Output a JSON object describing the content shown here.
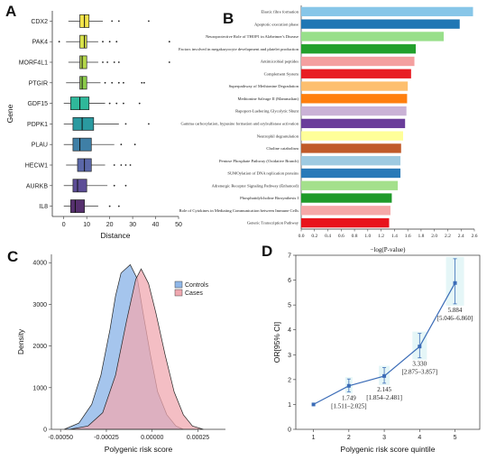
{
  "panels": [
    {
      "letter": "A"
    },
    {
      "letter": "B"
    },
    {
      "letter": "C"
    },
    {
      "letter": "D"
    }
  ],
  "chart_data": [
    {
      "type": "boxplot",
      "panel": "A",
      "xlabel": "Distance",
      "ylabel": "Gene",
      "xlim": [
        -5,
        50
      ],
      "xticks": [
        0,
        10,
        20,
        30,
        40,
        50
      ],
      "boxes": [
        {
          "label": "CDX2",
          "color": "#f2e34a",
          "q1": 7,
          "median": 9,
          "q3": 11,
          "whisker_low": 2,
          "whisker_high": 17,
          "outliers": [
            21,
            24,
            37
          ]
        },
        {
          "label": "PAK4",
          "color": "#d8e24a",
          "q1": 7,
          "median": 9,
          "q3": 10,
          "whisker_low": 1,
          "whisker_high": 15,
          "outliers": [
            -2,
            17,
            20,
            23,
            46
          ]
        },
        {
          "label": "MORF4L1",
          "color": "#b5d84a",
          "q1": 7,
          "median": 8,
          "q3": 10,
          "whisker_low": 2,
          "whisker_high": 15,
          "outliers": [
            17,
            19,
            22,
            24,
            46
          ]
        },
        {
          "label": "PTGIR",
          "color": "#8ccd4a",
          "q1": 7,
          "median": 8,
          "q3": 10,
          "whisker_low": 1,
          "whisker_high": 16,
          "outliers": [
            18,
            21,
            24,
            26,
            34,
            35
          ]
        },
        {
          "label": "GDF15",
          "color": "#2fb89a",
          "q1": 3,
          "median": 7,
          "q3": 11,
          "whisker_low": 0,
          "whisker_high": 18,
          "outliers": [
            20,
            23,
            26,
            33
          ]
        },
        {
          "label": "PDPK1",
          "color": "#2a9aa0",
          "q1": 4,
          "median": 8,
          "q3": 13,
          "whisker_low": 0,
          "whisker_high": 24,
          "outliers": [
            27,
            37
          ]
        },
        {
          "label": "PLAU",
          "color": "#3f7fa6",
          "q1": 4,
          "median": 7,
          "q3": 12,
          "whisker_low": 0,
          "whisker_high": 22,
          "outliers": [
            25,
            31
          ]
        },
        {
          "label": "HECW1",
          "color": "#5a67a8",
          "q1": 6,
          "median": 9,
          "q3": 12,
          "whisker_low": 1,
          "whisker_high": 18,
          "outliers": [
            22,
            25,
            27,
            29
          ]
        },
        {
          "label": "AURKB",
          "color": "#5c4d96",
          "q1": 4,
          "median": 6,
          "q3": 10,
          "whisker_low": 0,
          "whisker_high": 19,
          "outliers": [
            22,
            27
          ]
        },
        {
          "label": "IL8",
          "color": "#56306e",
          "q1": 3,
          "median": 5,
          "q3": 9,
          "whisker_low": 0,
          "whisker_high": 15,
          "outliers": [
            20,
            24
          ]
        }
      ]
    },
    {
      "type": "bar",
      "panel": "B",
      "orientation": "horizontal",
      "xlabel": "−log(P-value)",
      "xlim": [
        0,
        2.6
      ],
      "xticks": [
        0.0,
        0.2,
        0.4,
        0.6,
        0.8,
        1.0,
        1.2,
        1.4,
        1.6,
        1.8,
        2.0,
        2.2,
        2.4,
        2.6
      ],
      "categories": [
        "Elastic fibre formation",
        "Apoptotic execution phase",
        "Neuroprotective Role of THOP1 in Alzheimer's Disease",
        "Factors involved in megakaryocyte development and platelet production",
        "Antimicrobial peptides",
        "Complement System",
        "Superpathway of Methionine Degradation",
        "Methionine Salvage II (Mammalian)",
        "Rapoport-Luebering Glycolytic Shunt",
        "Gamma carboxylation, hypusine formation and arylsulfatase activation",
        "Neutrophil degranulation",
        "Choline catabolism",
        "Pentose Phosphate Pathway (Oxidative Branch)",
        "SUMOylation of DNA replication proteins",
        "Adrenergic Receptor Signaling Pathway (Enhanced)",
        "Phosphatidylcholine Biosynthesis I",
        "Role of Cytokines in Mediating Communication between Immune Cells",
        "Generic Transcription Pathway"
      ],
      "values": [
        2.58,
        2.38,
        2.14,
        1.72,
        1.7,
        1.65,
        1.6,
        1.59,
        1.58,
        1.56,
        1.53,
        1.5,
        1.49,
        1.49,
        1.45,
        1.36,
        1.34,
        1.32
      ],
      "colors": [
        "#87c6e8",
        "#1f77b4",
        "#98df8a",
        "#22a02c",
        "#f4a0a0",
        "#e81e24",
        "#fdbf6f",
        "#ff7f0e",
        "#cab2d6",
        "#6a3d9a",
        "#ffff99",
        "#c05a2a",
        "#9ecae1",
        "#2a7ab8",
        "#a4e08c",
        "#1f9a2a",
        "#f5a8a8",
        "#e8141c"
      ]
    },
    {
      "type": "density",
      "panel": "C",
      "xlabel": "Polygenic risk score",
      "ylabel": "Density",
      "xlim": [
        -0.00055,
        0.0004
      ],
      "ylim": [
        0,
        4200
      ],
      "xticks": [
        -0.0005,
        -0.00025,
        0.0,
        0.00025
      ],
      "xtick_labels": [
        "-0.00050",
        "-0.00025",
        "0.00000",
        "0.00025"
      ],
      "yticks": [
        0,
        1000,
        2000,
        3000,
        4000
      ],
      "series": [
        {
          "name": "Controls",
          "color": "#8fb7e8",
          "x": [
            -0.00048,
            -0.0004,
            -0.00033,
            -0.00028,
            -0.00023,
            -0.0002,
            -0.00017,
            -0.00012,
            -8e-05,
            -5e-05,
            -1e-05,
            3e-05,
            8e-05,
            0.00013,
            0.00017
          ],
          "y": [
            0,
            150,
            600,
            1300,
            2400,
            3200,
            3750,
            3950,
            3600,
            2800,
            1800,
            900,
            350,
            80,
            0
          ]
        },
        {
          "name": "Cases",
          "color": "#f0a8b0",
          "x": [
            -0.00045,
            -0.00035,
            -0.00027,
            -0.0002,
            -0.00014,
            -9e-05,
            -6e-05,
            -2e-05,
            2e-05,
            7e-05,
            0.00012,
            0.00017,
            0.00022,
            0.00028
          ],
          "y": [
            0,
            80,
            400,
            1300,
            2600,
            3600,
            3850,
            3500,
            2800,
            1800,
            900,
            350,
            80,
            0
          ]
        }
      ],
      "legend": {
        "position": "top-right",
        "entries": [
          "Controls",
          "Cases"
        ]
      }
    },
    {
      "type": "line",
      "panel": "D",
      "xlabel": "Polygenic risk score quintile",
      "ylabel": "OR[95% CI]",
      "xlim": [
        0.5,
        5.7
      ],
      "ylim": [
        0,
        7
      ],
      "xticks": [
        1,
        2,
        3,
        4,
        5
      ],
      "yticks": [
        0,
        1,
        2,
        3,
        4,
        5,
        6,
        7
      ],
      "x": [
        1,
        2,
        3,
        4,
        5
      ],
      "y": [
        1.0,
        1.749,
        2.145,
        3.33,
        5.884
      ],
      "lower": [
        1.0,
        1.511,
        1.854,
        2.875,
        5.046
      ],
      "upper": [
        1.0,
        2.025,
        2.481,
        3.857,
        6.86
      ],
      "annotations": [
        {
          "x": 2,
          "value": "1.749",
          "ci": "[1.511–2.025]"
        },
        {
          "x": 3,
          "value": "2.145",
          "ci": "[1.854–2.481]"
        },
        {
          "x": 4,
          "value": "3.330",
          "ci": "[2.875–3.857]"
        },
        {
          "x": 5,
          "value": "5.884",
          "ci": "[5.046–6.860]"
        }
      ],
      "color": "#3b6cb7"
    }
  ]
}
